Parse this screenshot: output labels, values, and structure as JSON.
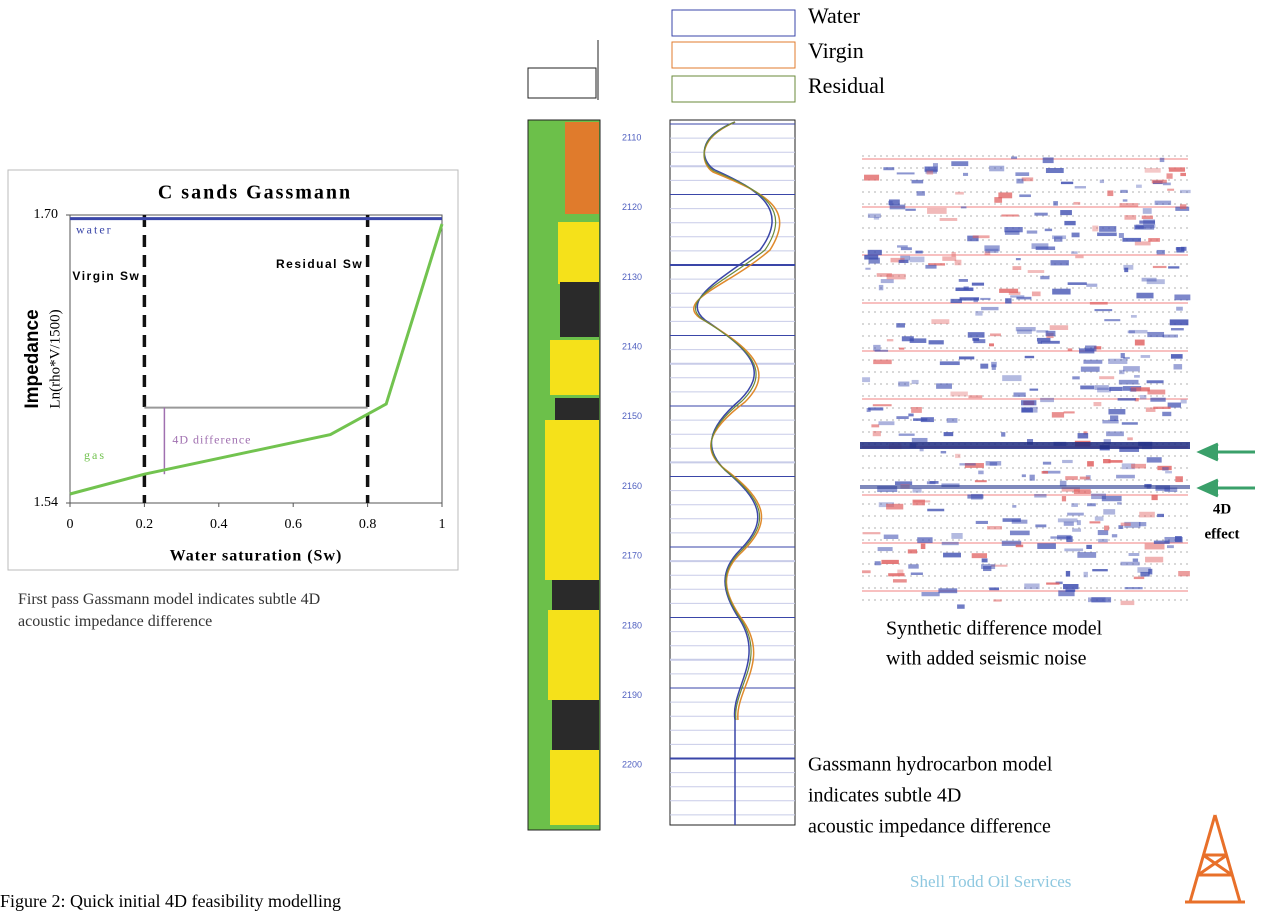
{
  "chart_data": {
    "type": "line",
    "title": "C sands Gassmann",
    "y_label": "Impedance",
    "y_sublabel": "Ln(rho*V/1500)",
    "x_label": "Water saturation (Sw)",
    "xlim": [
      0,
      1
    ],
    "xticks": [
      0,
      0.2,
      0.4,
      0.6,
      0.8,
      1
    ],
    "ylim": [
      1.54,
      1.7
    ],
    "yticks": [
      1.54,
      {
        "value": 1.7,
        "label": "1.70"
      }
    ],
    "series": [
      {
        "name": "gas",
        "color": "#72c34f",
        "x": [
          0,
          0.2,
          0.7,
          0.85,
          1
        ],
        "values": [
          1.545,
          1.556,
          1.578,
          1.595,
          1.695
        ]
      },
      {
        "name": "water",
        "color": "#3a46a8",
        "x": [
          0,
          1
        ],
        "values": [
          1.698,
          1.698
        ]
      }
    ],
    "annotations": [
      {
        "text": "Virgin Sw",
        "x": 0.2
      },
      {
        "text": "Residual Sw",
        "x": 0.8
      }
    ],
    "difference": {
      "label": "4D difference",
      "from": 1.556,
      "to": 1.593
    }
  },
  "caption_left": "First pass Gassmann model indicates subtle 4D acoustic impedance difference",
  "well_log": {
    "depth_labels": [
      "2110",
      "2120",
      "2130",
      "2140",
      "2150",
      "2160",
      "2170",
      "2180",
      "2190",
      "2200"
    ],
    "legend": [
      "Water",
      "Virgin",
      "Residual"
    ],
    "caption": [
      "Gassmann hydrocarbon model",
      "indicates subtle 4D",
      "acoustic impedance difference"
    ]
  },
  "seismic": {
    "caption": [
      "Synthetic difference model",
      "with added seismic noise"
    ],
    "arrow_label": [
      "4D",
      "effect"
    ]
  },
  "company": "Shell Todd Oil Services",
  "figure_caption": "Figure 2: Quick initial 4D feasibility modelling"
}
